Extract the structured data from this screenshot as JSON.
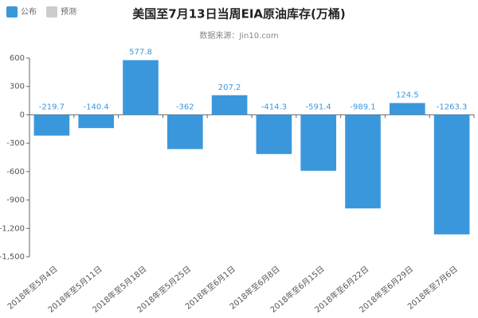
{
  "chart_data": {
    "type": "bar",
    "title": "美国至7月13日当周EIA原油库存(万桶)",
    "subtitle": "数据来源：Jin10.com",
    "categories": [
      "2018年至5月4日",
      "2018年至5月11日",
      "2018年至5月18日",
      "2018年至5月25日",
      "2018年至6月1日",
      "2018年至6月8日",
      "2018年至6月15日",
      "2018年至6月22日",
      "2018年至6月29日",
      "2018年至7月6日"
    ],
    "series": [
      {
        "name": "公布",
        "color": "#3b97dc",
        "values": [
          -219.7,
          -140.4,
          577.8,
          -362,
          207.2,
          -414.3,
          -591.4,
          -989.1,
          124.5,
          -1263.3
        ]
      },
      {
        "name": "预测",
        "color": "#cccccc",
        "values": [
          null,
          null,
          null,
          null,
          null,
          null,
          null,
          null,
          null,
          null
        ]
      }
    ],
    "ylim": [
      -1500,
      600
    ],
    "yticks": [
      {
        "value": -1500,
        "label": "-1,500"
      },
      {
        "value": -1200,
        "label": "-1,200"
      },
      -900,
      -600,
      -300,
      0,
      300,
      600
    ],
    "grid": false
  }
}
